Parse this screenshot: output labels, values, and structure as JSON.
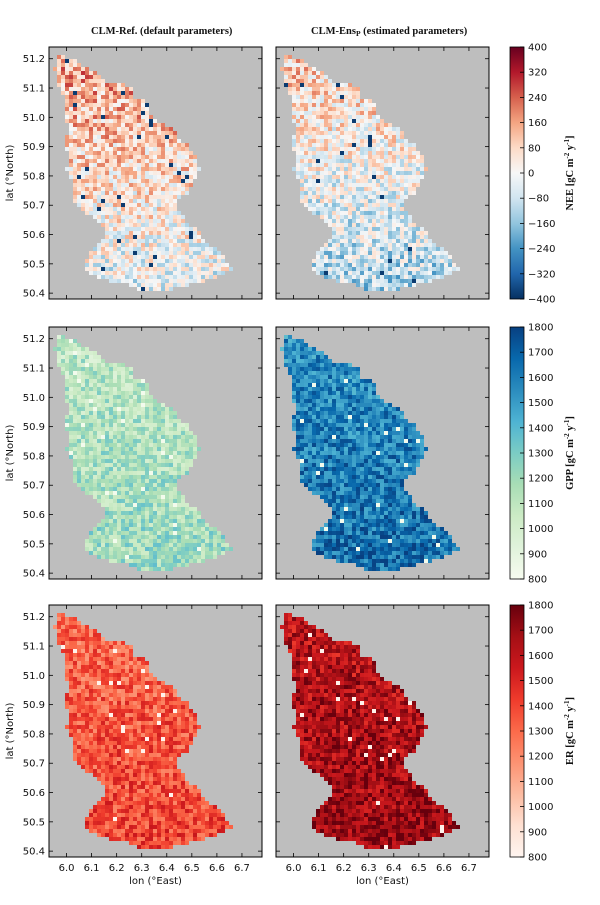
{
  "titles": {
    "left": "CLM-Ref. (default parameters)",
    "right_main": "CLM-Ens",
    "right_sub": "P",
    "right_rest": " (estimated parameters)"
  },
  "xlabel": "lon (°East)",
  "ylabel": "lat (°North)",
  "chart_data": [
    {
      "type": "heatmap",
      "variable": "NEE",
      "panels": [
        "CLM-Ref. (default parameters)",
        "CLM-EnsP (estimated parameters)"
      ],
      "colormap": "RdBu_r",
      "colorbar_label": {
        "name": "NEE",
        "units_prefix": "[gC m",
        "units_mid": " y",
        "units_suffix": "]"
      },
      "colorbar_ticks": [
        "400",
        "320",
        "240",
        "160",
        "80",
        "0",
        "−80",
        "−160",
        "−240",
        "−320",
        "−400"
      ],
      "clim": [
        -400,
        400
      ],
      "xlim": [
        5.93,
        6.78
      ],
      "ylim": [
        50.38,
        51.24
      ],
      "xticks": [
        "6.0",
        "6.1",
        "6.2",
        "6.3",
        "6.4",
        "6.5",
        "6.6",
        "6.7"
      ],
      "yticks": [
        "51.2",
        "51.1",
        "51.0",
        "50.9",
        "50.8",
        "50.7",
        "50.6",
        "50.5",
        "50.4"
      ],
      "mean_left": 60,
      "mean_right": -10,
      "colors": {
        "low": "#053061",
        "mid": "#f7f7f7",
        "high": "#67001f",
        "background": "#bebebe"
      }
    },
    {
      "type": "heatmap",
      "variable": "GPP",
      "panels": [
        "CLM-Ref. (default parameters)",
        "CLM-EnsP (estimated parameters)"
      ],
      "colormap": "GnBu",
      "colorbar_label": {
        "name": "GPP",
        "units_prefix": "[gC m",
        "units_mid": " y",
        "units_suffix": "]"
      },
      "colorbar_ticks": [
        "1800",
        "1700",
        "1600",
        "1500",
        "1400",
        "1300",
        "1200",
        "1100",
        "1000",
        "900",
        "800"
      ],
      "clim": [
        800,
        1800
      ],
      "xlim": [
        5.93,
        6.78
      ],
      "ylim": [
        50.38,
        51.24
      ],
      "xticks": [
        "6.0",
        "6.1",
        "6.2",
        "6.3",
        "6.4",
        "6.5",
        "6.6",
        "6.7"
      ],
      "yticks": [
        "51.2",
        "51.1",
        "51.0",
        "50.9",
        "50.8",
        "50.7",
        "50.6",
        "50.5",
        "50.4"
      ],
      "mean_left": 1150,
      "mean_right": 1600,
      "colors": {
        "low": "#f7fcf0",
        "high": "#084081",
        "background": "#bebebe"
      }
    },
    {
      "type": "heatmap",
      "variable": "ER",
      "panels": [
        "CLM-Ref. (default parameters)",
        "CLM-EnsP (estimated parameters)"
      ],
      "colormap": "Reds",
      "colorbar_label": {
        "name": "ER",
        "units_prefix": "[gC m",
        "units_mid": " y",
        "units_suffix": "]"
      },
      "colorbar_ticks": [
        "1800",
        "1700",
        "1600",
        "1500",
        "1400",
        "1300",
        "1200",
        "1100",
        "1000",
        "900",
        "800"
      ],
      "clim": [
        800,
        1800
      ],
      "xlim": [
        5.93,
        6.78
      ],
      "ylim": [
        50.38,
        51.24
      ],
      "xticks": [
        "6.0",
        "6.1",
        "6.2",
        "6.3",
        "6.4",
        "6.5",
        "6.6",
        "6.7"
      ],
      "yticks": [
        "51.2",
        "51.1",
        "51.0",
        "50.9",
        "50.8",
        "50.7",
        "50.6",
        "50.5",
        "50.4"
      ],
      "mean_left": 1350,
      "mean_right": 1650,
      "colors": {
        "low": "#fff5f0",
        "high": "#67000d",
        "background": "#bebebe"
      }
    }
  ]
}
